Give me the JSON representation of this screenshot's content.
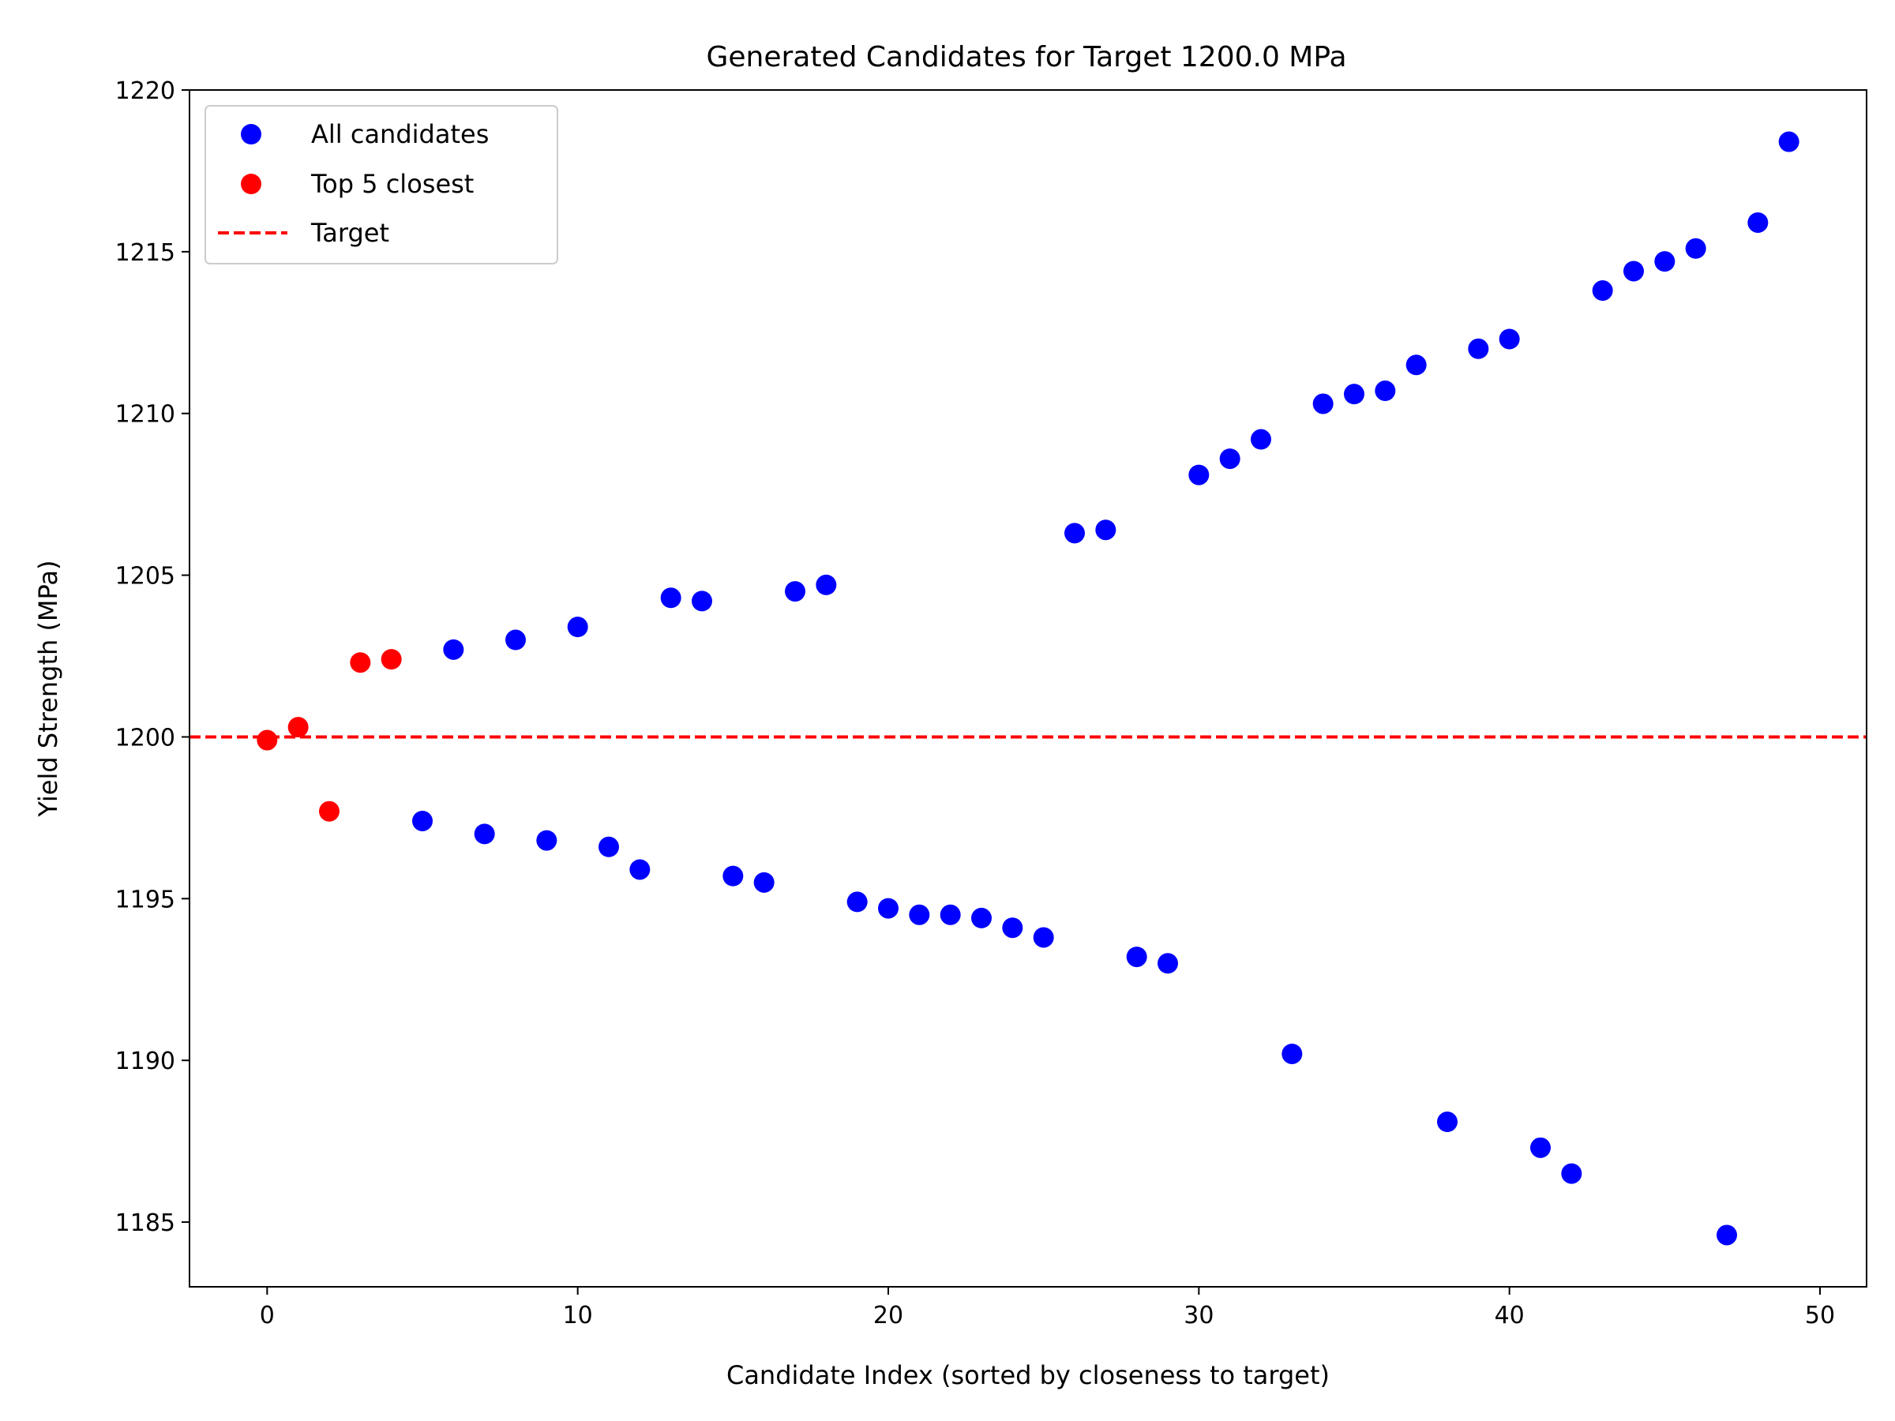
{
  "chart_data": {
    "type": "scatter",
    "title": "Generated Candidates for Target 1200.0 MPa",
    "xlabel": "Candidate Index (sorted by closeness to target)",
    "ylabel": "Yield Strength (MPa)",
    "xlim": [
      -2.5,
      51.5
    ],
    "ylim": [
      1183.0,
      1220.0
    ],
    "xticks": [
      0,
      10,
      20,
      30,
      40,
      50
    ],
    "yticks": [
      1185,
      1190,
      1195,
      1200,
      1205,
      1210,
      1215,
      1220
    ],
    "grid": false,
    "legend_placement": "upper-left",
    "target_value": 1200.0,
    "series": [
      {
        "name": "All candidates",
        "color": "#0000ff",
        "marker": "circle",
        "x": [
          5,
          6,
          7,
          8,
          9,
          10,
          11,
          12,
          13,
          14,
          15,
          16,
          17,
          18,
          19,
          20,
          21,
          22,
          23,
          24,
          25,
          26,
          27,
          28,
          29,
          30,
          31,
          32,
          33,
          34,
          35,
          36,
          37,
          38,
          39,
          40,
          41,
          42,
          43,
          44,
          45,
          46,
          47,
          48,
          49
        ],
        "y": [
          1197.4,
          1202.7,
          1197.0,
          1203.0,
          1196.8,
          1203.4,
          1196.6,
          1195.9,
          1204.3,
          1204.2,
          1195.7,
          1195.5,
          1204.5,
          1204.7,
          1194.9,
          1194.7,
          1194.5,
          1194.5,
          1194.4,
          1194.1,
          1193.8,
          1206.3,
          1206.4,
          1193.2,
          1193.0,
          1208.1,
          1208.6,
          1209.2,
          1190.2,
          1210.3,
          1210.6,
          1210.7,
          1211.5,
          1188.1,
          1212.0,
          1212.3,
          1187.3,
          1186.5,
          1213.8,
          1214.4,
          1214.7,
          1215.1,
          1184.6,
          1215.9,
          1218.4
        ]
      },
      {
        "name": "Top 5 closest",
        "color": "#ff0000",
        "marker": "circle",
        "x": [
          0,
          1,
          2,
          3,
          4
        ],
        "y": [
          1199.9,
          1200.3,
          1197.7,
          1202.3,
          1202.4
        ]
      },
      {
        "name": "Target",
        "color": "#ff0000",
        "style": "dashed-horizontal-line",
        "y": 1200.0
      }
    ]
  }
}
